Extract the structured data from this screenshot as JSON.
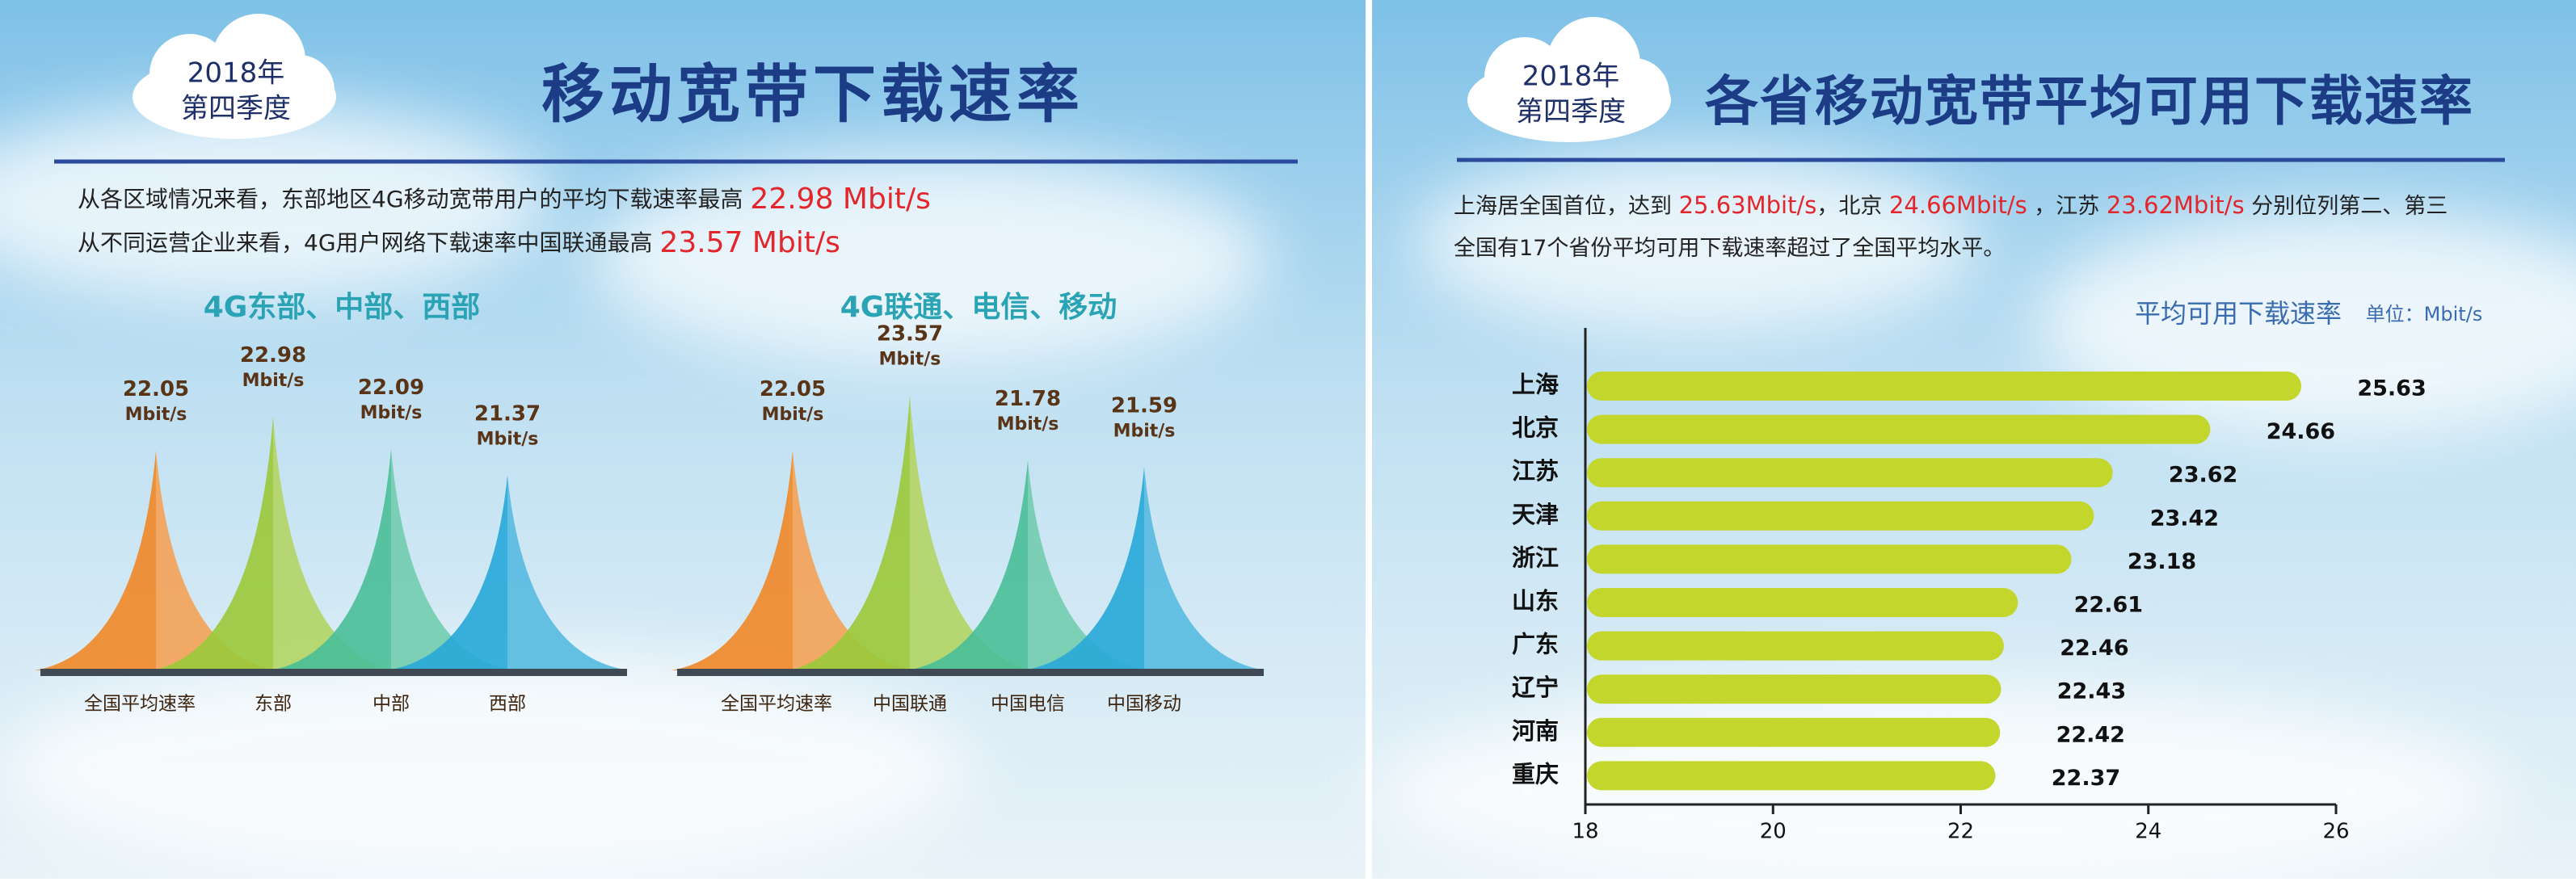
{
  "left_panel": {
    "badge": [
      "2018年",
      "第四季度"
    ],
    "title": "移动宽带下载速率",
    "lines": [
      [
        "从各区域情况来看，东部地区4G移动宽带用户的平均下载速率最高 ",
        "22.98 Mbit/s"
      ],
      [
        "从不同运营企业来看，4G用户网络下载速率中国联通最高 ",
        "23.57 Mbit/s"
      ]
    ]
  },
  "right_panel": {
    "badge": [
      "2018年",
      "第四季度"
    ],
    "title": "各省移动宽带平均可用下载速率",
    "lines": [
      [
        "上海居全国首位，达到 ",
        "25.63Mbit/s",
        "，北京 ",
        "24.66Mbit/s",
        " ，江苏 ",
        "23.62Mbit/s",
        " 分别位列第二、第三"
      ],
      [
        "全国有17个省份平均可用下载速率超过了全国平均水平。"
      ]
    ]
  },
  "chart_data": [
    {
      "type": "peak",
      "title": "4G东部、中部、西部",
      "categories": [
        "全国平均速率",
        "东部",
        "中部",
        "西部"
      ],
      "values": [
        22.05,
        22.98,
        22.09,
        21.37
      ],
      "value_labels": [
        "22.05 Mbit/s",
        "22.98 Mbit/s",
        "22.09 Mbit/s",
        "21.37 Mbit/s"
      ],
      "colors": [
        "#f0892a",
        "#9cc93c",
        "#4cbf98",
        "#2aa9d8"
      ]
    },
    {
      "type": "peak",
      "title": "4G联通、电信、移动",
      "categories": [
        "全国平均速率",
        "中国联通",
        "中国电信",
        "中国移动"
      ],
      "values": [
        22.05,
        23.57,
        21.78,
        21.59
      ],
      "value_labels": [
        "22.05 Mbit/s",
        "23.57 Mbit/s",
        "21.78 Mbit/s",
        "21.59 Mbit/s"
      ],
      "colors": [
        "#f0892a",
        "#9cc93c",
        "#4cbf98",
        "#2aa9d8"
      ]
    },
    {
      "type": "hbar",
      "title": "平均可用下载速率",
      "subtitle": "单位：Mbit/s",
      "categories": [
        "上海",
        "北京",
        "江苏",
        "天津",
        "浙江",
        "山东",
        "广东",
        "辽宁",
        "河南",
        "重庆"
      ],
      "values": [
        25.63,
        24.66,
        23.62,
        23.42,
        23.18,
        22.61,
        22.46,
        22.43,
        22.42,
        22.37
      ],
      "color": "#c3d62b",
      "xlim": [
        18,
        26
      ],
      "xticks": [
        18,
        20,
        22,
        24,
        26
      ]
    }
  ]
}
